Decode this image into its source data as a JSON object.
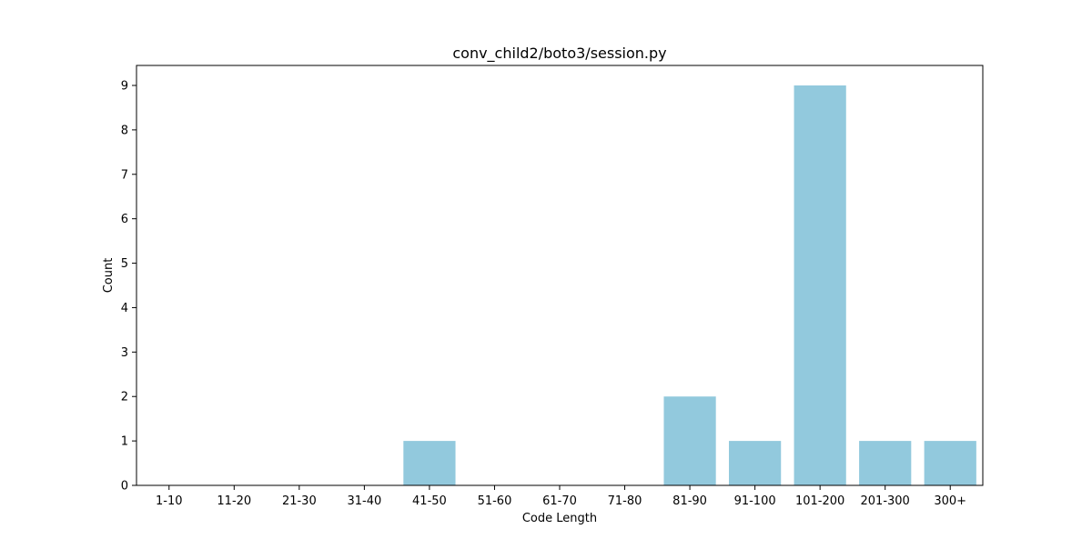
{
  "chart_data": {
    "type": "bar",
    "title": "conv_child2/boto3/session.py",
    "xlabel": "Code Length",
    "ylabel": "Count",
    "categories": [
      "1-10",
      "11-20",
      "21-30",
      "31-40",
      "41-50",
      "51-60",
      "61-70",
      "71-80",
      "81-90",
      "91-100",
      "101-200",
      "201-300",
      "300+"
    ],
    "values": [
      0,
      0,
      0,
      0,
      1,
      0,
      0,
      0,
      2,
      1,
      9,
      1,
      1
    ],
    "ylim": [
      0,
      9.45
    ],
    "yticks": [
      0,
      1,
      2,
      3,
      4,
      5,
      6,
      7,
      8,
      9
    ],
    "grid": false,
    "legend": "none",
    "bar_color": "#92c9dd"
  }
}
